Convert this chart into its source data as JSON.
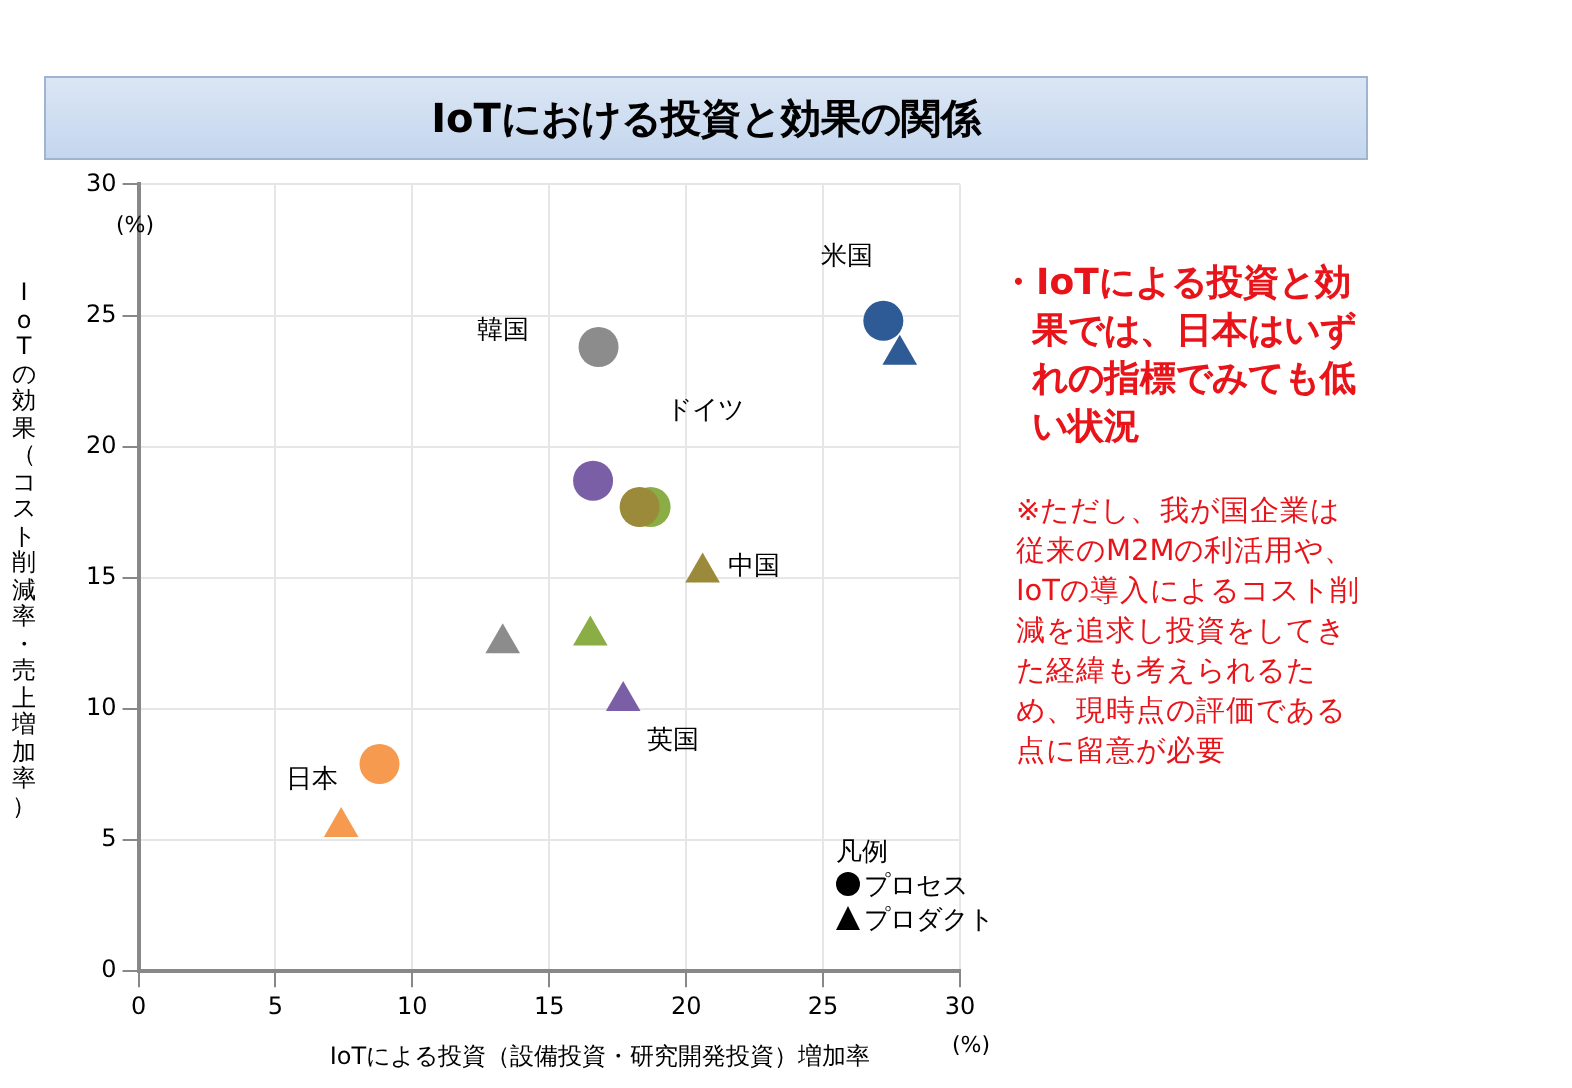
{
  "chart_data": {
    "type": "scatter",
    "title": "IoTにおける投資と効果の関係",
    "xlabel": "IoTによる投資（設備投資・研究開発投資）増加率",
    "ylabel": "IoTの効果（コスト削減率・売上増加率）",
    "legend_title": "凡例",
    "legend": "bottom right",
    "grid": true,
    "xlim": [
      0,
      30
    ],
    "xticks": [
      0,
      5,
      10,
      15,
      20,
      25,
      30
    ],
    "ylim": [
      0,
      30
    ],
    "yticks": [
      0,
      5,
      10,
      15,
      20,
      25,
      30
    ],
    "series": [
      {
        "name": "プロセス",
        "marker": "circle",
        "x": [
          27.2,
          16.8,
          16.6,
          18.7,
          18.3,
          8.8
        ],
        "values": [
          24.8,
          23.8,
          18.7,
          17.7,
          17.7,
          7.9
        ],
        "colors": [
          "#2e5a95",
          "#8c8c8c",
          "#7b5fa6",
          "#8aad45",
          "#9b8a3a",
          "#f59a4e"
        ]
      },
      {
        "name": "プロダクト",
        "marker": "triangle",
        "x": [
          27.8,
          13.3,
          17.7,
          16.5,
          20.6,
          7.4
        ],
        "values": [
          23.5,
          12.5,
          10.3,
          12.8,
          15.2,
          5.5
        ],
        "colors": [
          "#2e5a95",
          "#8c8c8c",
          "#7b5fa6",
          "#8aad45",
          "#9b8a3a",
          "#f59a4e"
        ]
      }
    ],
    "annotations": [
      "米国",
      "韓国",
      "英国",
      "ドイツ",
      "中国",
      "日本",
      "・IoTによる投資と効果では、日本はいずれの指標でみても低い状況",
      "※ただし、我が国企業は従来のM2Mの利活用や、IoTの導入によるコスト削減を追求し投資をしてきた経緯も考えられるため、現時点の評価である点に留意が必要",
      "(%)",
      "(%)"
    ]
  }
}
